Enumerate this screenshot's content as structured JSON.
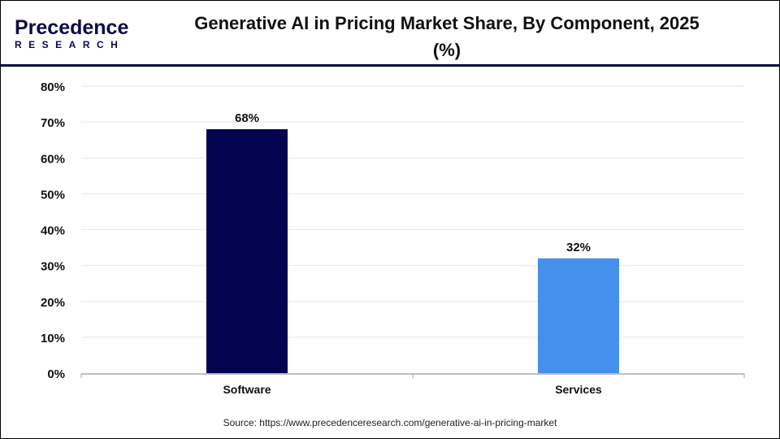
{
  "logo": {
    "text_main": "Precedence",
    "text_sub": "RESEARCH"
  },
  "title": "Generative AI in Pricing Market Share, By Component, 2025 (%)",
  "source": "Source: https://www.precedenceresearch.com/generative-ai-in-pricing-market",
  "chart_data": {
    "type": "bar",
    "title": "Generative AI in Pricing Market Share, By Component, 2025 (%)",
    "categories": [
      "Software",
      "Services"
    ],
    "values": [
      68,
      32
    ],
    "data_labels": [
      "68%",
      "32%"
    ],
    "colors": [
      "#03034f",
      "#4590ec"
    ],
    "ylim": [
      0,
      80
    ],
    "yticks": [
      "0%",
      "10%",
      "20%",
      "30%",
      "40%",
      "50%",
      "60%",
      "70%",
      "80%"
    ],
    "grid": true,
    "xlabel": "",
    "ylabel": ""
  }
}
